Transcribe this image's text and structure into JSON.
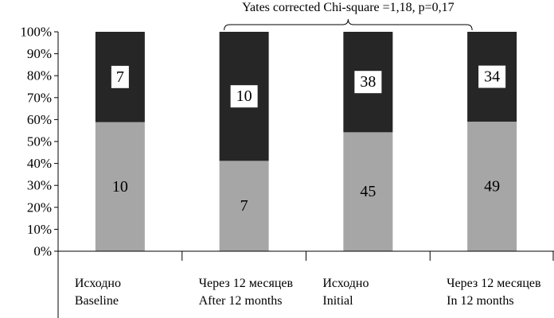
{
  "chart_data": {
    "type": "bar",
    "stacked": true,
    "normalized": true,
    "categories": [
      [
        "Исходно",
        "Baseline"
      ],
      [
        "Через 12 месяцев",
        "After 12 months"
      ],
      [
        "Исходно",
        "Initial"
      ],
      [
        "Через 12 месяцев",
        "In 12 months"
      ]
    ],
    "series": [
      {
        "color": "#a6a6a6",
        "values": [
          10,
          7,
          45,
          49
        ]
      },
      {
        "color": "#262626",
        "values": [
          7,
          10,
          38,
          34
        ]
      }
    ],
    "ylim": [
      0,
      100
    ],
    "yticks": [
      "0%",
      "10%",
      "20%",
      "30%",
      "40%",
      "50%",
      "60%",
      "70%",
      "80%",
      "90%",
      "100%"
    ],
    "annotation": "Yates corrected Chi-square =1,18, p=0,17",
    "grid": false,
    "legend": false
  }
}
